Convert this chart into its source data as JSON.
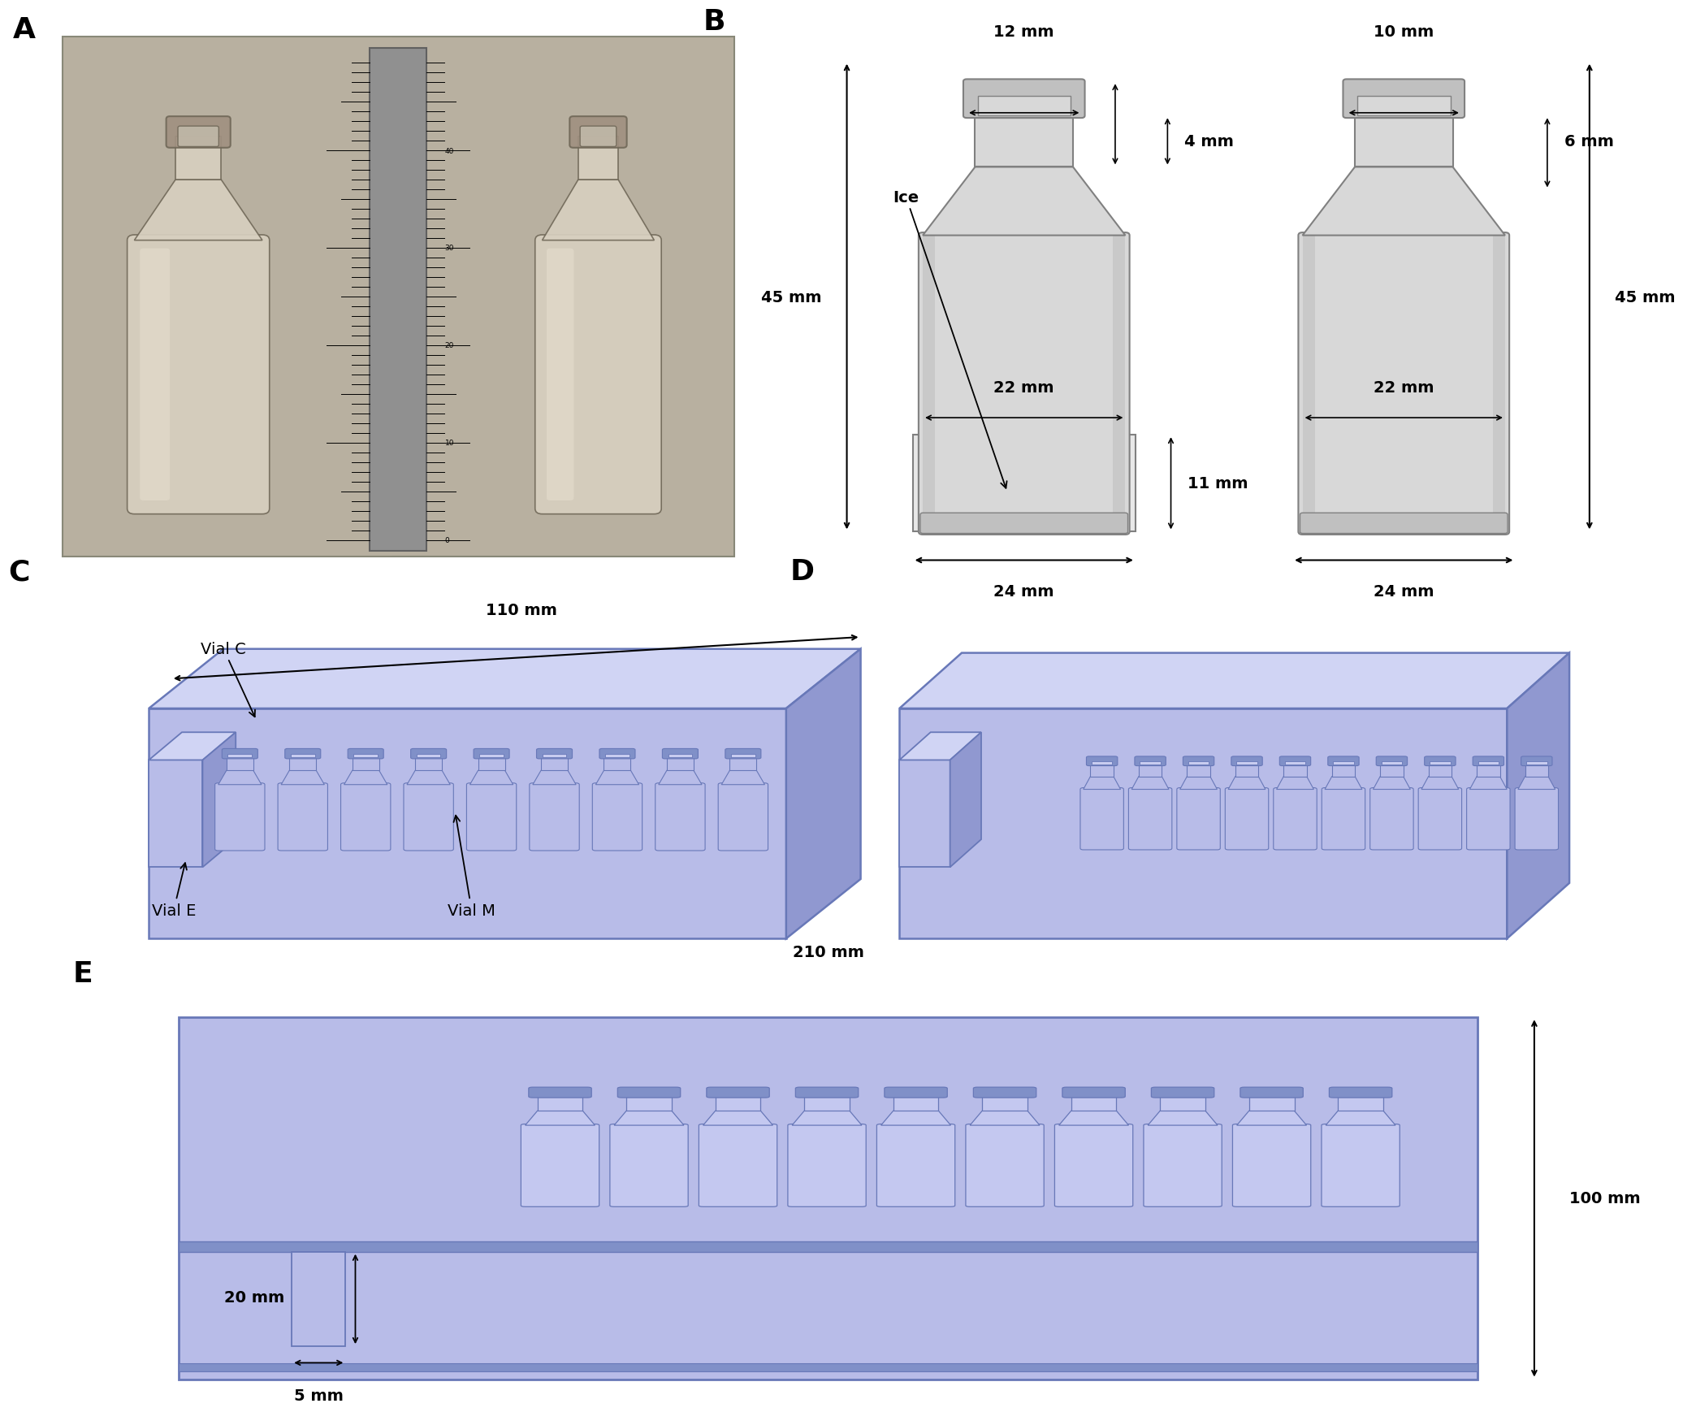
{
  "fig_width": 19.98,
  "fig_height": 17.76,
  "bg_color": "#ffffff",
  "vial_fill": "#b8bce8",
  "vial_fill2": "#c8ccf0",
  "vial_top": "#d0d4f4",
  "vial_side": "#9098d0",
  "vial_edge": "#6878b8",
  "vial_dark": "#8090c8",
  "gray_light": "#d8d8d8",
  "gray_mid": "#c0c0c0",
  "gray_dark": "#a0a0a0",
  "gray_edge": "#808080",
  "panel_label_fontsize": 26,
  "dim_fontsize": 14,
  "panel_A_label": "A",
  "panel_B_label": "B",
  "panel_C_label": "C",
  "panel_D_label": "D",
  "panel_E_label": "E",
  "dim_B_left_top": "12 mm",
  "dim_B_right_top": "10 mm",
  "dim_B_4mm": "4 mm",
  "dim_B_6mm": "6 mm",
  "dim_B_45mm_left": "45 mm",
  "dim_B_45mm_right": "45 mm",
  "dim_B_22mm_left": "22 mm",
  "dim_B_22mm_right": "22 mm",
  "dim_B_11mm": "11 mm",
  "dim_B_24mm_left": "24 mm",
  "dim_B_24mm_right": "24 mm",
  "dim_C_110mm": "110 mm",
  "dim_E_210mm": "210 mm",
  "dim_E_100mm": "100 mm",
  "dim_E_20mm": "20 mm",
  "dim_E_5mm": "5 mm",
  "label_ice": "Ice",
  "label_vialC": "Vial C",
  "label_vialE": "Vial E",
  "label_vialM": "Vial M"
}
